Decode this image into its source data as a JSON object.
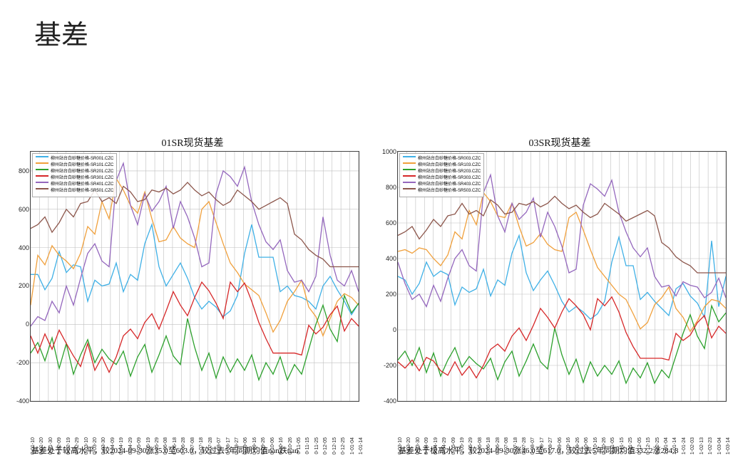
{
  "title": "基差",
  "colors": {
    "grid": "#bfbfbf",
    "border": "#444444",
    "bg": "#ffffff"
  },
  "series_palette": [
    "#3fb0e6",
    "#f0a03c",
    "#2ca02c",
    "#d62728",
    "#9467bd",
    "#8c564b"
  ],
  "chart_left": {
    "title": "01SR现货基差",
    "legend": [
      "柳州站台白砂糖价格-SR001.CZC",
      "柳州站台白砂糖价格-SR101.CZC",
      "柳州站台白砂糖价格-SR201.CZC",
      "柳州站台白砂糖价格-SR301.CZC",
      "柳州站台白砂糖价格-SR401.CZC",
      "柳州站台白砂糖价格-SR501.CZC"
    ],
    "ylim": [
      -400,
      900
    ],
    "ytick_step": 200,
    "x_labels": [
      "0-01-10",
      "0-01-20",
      "0-01-30",
      "0-02-09",
      "0-02-19",
      "0-02-29",
      "0-03-10",
      "0-03-20",
      "0-03-30",
      "0-04-09",
      "0-04-19",
      "0-04-29",
      "0-05-09",
      "0-05-19",
      "0-05-29",
      "0-06-08",
      "0-06-18",
      "0-06-28",
      "0-07-08",
      "0-07-18",
      "0-07-28",
      "0-08-07",
      "0-08-17",
      "0-08-27",
      "0-09-06",
      "0-09-16",
      "0-09-26",
      "0-10-06",
      "0-10-16",
      "0-10-26",
      "0-11-05",
      "0-11-15",
      "0-11-25",
      "0-12-05",
      "0-12-15",
      "0-12-25",
      "1-01-04",
      "1-01-14"
    ],
    "series": {
      "s0": [
        260,
        260,
        180,
        240,
        380,
        270,
        310,
        300,
        120,
        230,
        200,
        210,
        320,
        170,
        260,
        230,
        420,
        520,
        300,
        200,
        260,
        320,
        240,
        140,
        80,
        120,
        90,
        40,
        70,
        150,
        370,
        520,
        350,
        350,
        350,
        170,
        200,
        150,
        140,
        120,
        80,
        200,
        250,
        180,
        120,
        50,
        110
      ],
      "s1": [
        100,
        360,
        310,
        410,
        360,
        330,
        290,
        370,
        510,
        470,
        640,
        550,
        760,
        700,
        620,
        580,
        690,
        550,
        430,
        440,
        510,
        450,
        420,
        400,
        600,
        640,
        530,
        420,
        320,
        270,
        210,
        180,
        150,
        60,
        -40,
        20,
        120,
        170,
        230,
        90,
        40,
        -60,
        30,
        120,
        160,
        140,
        100
      ],
      "s2": [
        -150,
        -95,
        -190,
        -70,
        -230,
        -100,
        -260,
        -160,
        -80,
        -200,
        -130,
        -180,
        -210,
        -140,
        -270,
        -170,
        -105,
        -250,
        -160,
        -60,
        -165,
        -210,
        30,
        -120,
        -240,
        -150,
        -280,
        -170,
        -250,
        -180,
        -240,
        -160,
        -290,
        -200,
        -260,
        -170,
        -290,
        -210,
        -260,
        -130,
        0,
        100,
        -25,
        -90,
        150,
        60,
        110
      ],
      "s3": [
        -60,
        -150,
        -50,
        -130,
        -30,
        -100,
        -165,
        -220,
        -100,
        -240,
        -170,
        -250,
        -170,
        -60,
        -25,
        -75,
        10,
        55,
        -25,
        70,
        170,
        100,
        45,
        140,
        220,
        175,
        110,
        30,
        220,
        170,
        215,
        120,
        10,
        -75,
        -150,
        -150,
        -150,
        -150,
        -160,
        -5,
        -50,
        -15,
        50,
        95,
        -35,
        30,
        -10
      ],
      "s4": [
        -10,
        40,
        20,
        120,
        60,
        200,
        100,
        240,
        370,
        420,
        330,
        300,
        750,
        840,
        620,
        520,
        680,
        590,
        640,
        720,
        500,
        640,
        560,
        450,
        300,
        320,
        680,
        800,
        770,
        720,
        820,
        640,
        520,
        430,
        390,
        440,
        280,
        220,
        230,
        170,
        250,
        560,
        360,
        230,
        200,
        280,
        170
      ],
      "s5": [
        500,
        520,
        560,
        480,
        530,
        600,
        560,
        630,
        640,
        700,
        640,
        660,
        630,
        720,
        690,
        640,
        650,
        700,
        690,
        710,
        680,
        700,
        740,
        700,
        670,
        690,
        650,
        620,
        640,
        700,
        670,
        640,
        600,
        620,
        640,
        660,
        630,
        470,
        440,
        390,
        360,
        340,
        300,
        300,
        300,
        300,
        300
      ]
    },
    "caption": "基差处于较高水平，较2024-09-30涨35.0至603.0，较过去5年同期均值nan跌nan"
  },
  "chart_right": {
    "title": "03SR现货基差",
    "legend": [
      "柳州站台白砂糖价格-SR003.CZC",
      "柳州站台白砂糖价格-SR103.CZC",
      "柳州站台白砂糖价格-SR203.CZC",
      "柳州站台白砂糖价格-SR303.CZC",
      "柳州站台白砂糖价格-SR403.CZC",
      "柳州站台白砂糖价格-SR503.CZC"
    ],
    "ylim": [
      -400,
      1000
    ],
    "ytick_step": 200,
    "x_labels": [
      "0-03-10",
      "0-03-20",
      "0-03-30",
      "0-04-09",
      "0-04-19",
      "0-04-29",
      "0-05-09",
      "0-05-19",
      "0-05-29",
      "0-06-08",
      "0-06-18",
      "0-06-28",
      "0-07-08",
      "0-07-18",
      "0-07-28",
      "0-08-07",
      "0-08-17",
      "0-08-27",
      "0-09-06",
      "0-09-16",
      "0-09-26",
      "0-10-06",
      "0-10-16",
      "0-10-26",
      "0-11-05",
      "0-11-15",
      "0-11-25",
      "0-12-05",
      "0-12-15",
      "0-12-25",
      "1-01-04",
      "1-01-14",
      "1-01-24",
      "1-02-03",
      "1-02-13",
      "1-02-23",
      "1-03-04",
      "1-03-14"
    ],
    "series": {
      "s0": [
        300,
        280,
        200,
        260,
        380,
        300,
        330,
        310,
        140,
        240,
        210,
        230,
        340,
        190,
        280,
        250,
        430,
        530,
        320,
        220,
        280,
        330,
        250,
        160,
        100,
        130,
        100,
        60,
        90,
        160,
        380,
        520,
        360,
        360,
        170,
        210,
        160,
        120,
        80,
        230,
        260,
        190,
        150,
        70,
        500,
        130,
        300
      ],
      "s1": [
        440,
        450,
        430,
        460,
        450,
        400,
        360,
        420,
        550,
        510,
        670,
        590,
        770,
        720,
        640,
        630,
        710,
        580,
        470,
        490,
        540,
        480,
        450,
        440,
        630,
        660,
        560,
        450,
        350,
        300,
        250,
        200,
        170,
        90,
        5,
        40,
        140,
        180,
        240,
        120,
        70,
        -10,
        50,
        130,
        170,
        160,
        120
      ],
      "s2": [
        -170,
        -120,
        -200,
        -100,
        -240,
        -130,
        -260,
        -170,
        -100,
        -210,
        -150,
        -190,
        -220,
        -160,
        -280,
        -180,
        -120,
        -260,
        -175,
        -80,
        -180,
        -220,
        10,
        -140,
        -250,
        -165,
        -295,
        -180,
        -260,
        -200,
        -250,
        -175,
        -300,
        -215,
        -270,
        -185,
        -300,
        -225,
        -270,
        -145,
        -20,
        85,
        -35,
        -105,
        135,
        45,
        95
      ],
      "s3": [
        -180,
        -215,
        -170,
        -230,
        -155,
        -175,
        -230,
        -255,
        -180,
        -255,
        -205,
        -270,
        -200,
        -110,
        -80,
        -120,
        -35,
        10,
        -60,
        25,
        120,
        70,
        10,
        100,
        175,
        135,
        85,
        0,
        175,
        135,
        185,
        100,
        -15,
        -95,
        -160,
        -160,
        -160,
        -160,
        -170,
        -20,
        -60,
        -30,
        40,
        80,
        -45,
        20,
        -20
      ],
      "s4": [
        380,
        260,
        170,
        200,
        130,
        250,
        160,
        290,
        400,
        450,
        360,
        330,
        770,
        870,
        640,
        550,
        710,
        620,
        660,
        740,
        520,
        660,
        580,
        470,
        320,
        340,
        700,
        820,
        790,
        750,
        840,
        660,
        550,
        460,
        410,
        460,
        300,
        240,
        250,
        190,
        270,
        250,
        240,
        180,
        210,
        290,
        180
      ],
      "s5": [
        530,
        550,
        580,
        510,
        560,
        620,
        580,
        640,
        650,
        710,
        650,
        670,
        640,
        730,
        700,
        650,
        660,
        710,
        700,
        720,
        690,
        710,
        750,
        710,
        680,
        700,
        660,
        630,
        650,
        710,
        680,
        650,
        610,
        630,
        650,
        670,
        640,
        490,
        460,
        410,
        380,
        360,
        320,
        320,
        320,
        320,
        320
      ]
    },
    "caption": "基差处于极高水平，较2024-09-30涨46.0至617.0，较过去5年同期均值332.2涨284.8"
  }
}
